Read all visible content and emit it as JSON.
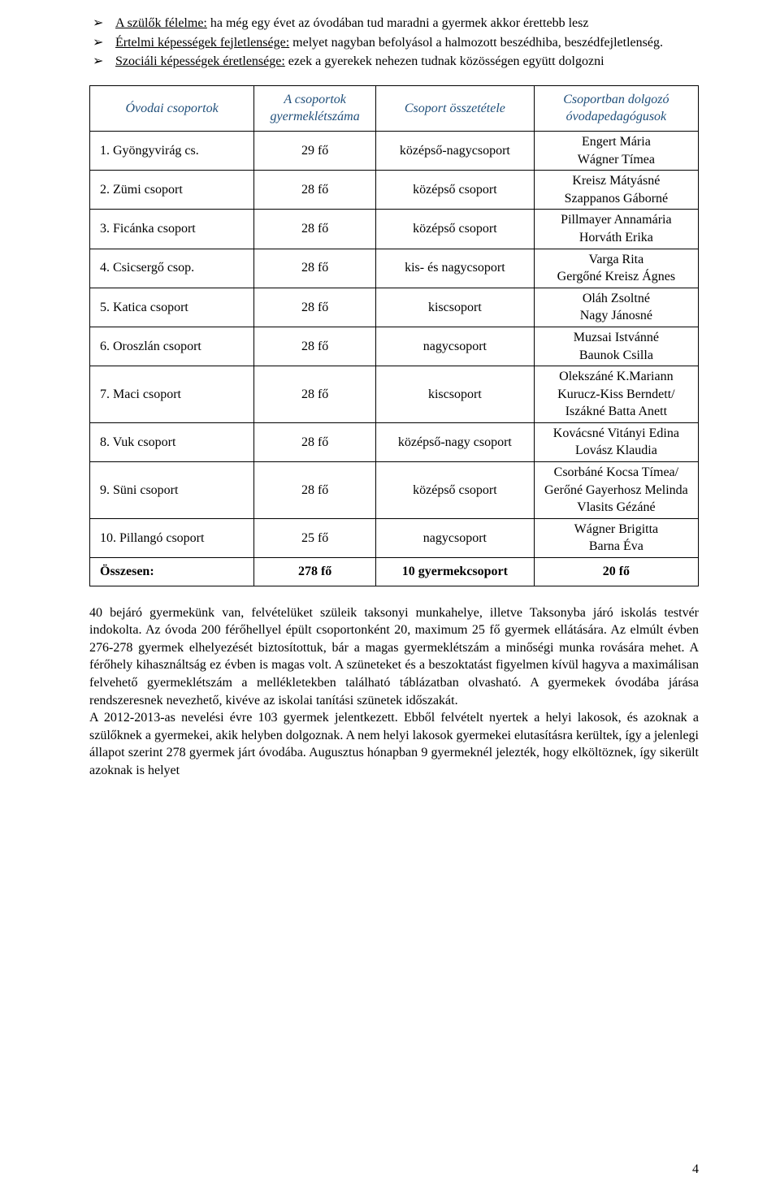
{
  "bullets": [
    {
      "prefix": "A szülők félelme:",
      "rest": " ha még egy évet az óvodában tud maradni a gyermek akkor érettebb lesz",
      "underline": true
    },
    {
      "prefix": "Értelmi képességek fejletlensége:",
      "rest": " melyet nagyban befolyásol a halmozott beszédhiba, beszédfejletlenség.",
      "underline": true
    },
    {
      "prefix": "Szociáli képességek éretlensége:",
      "rest": " ezek a gyerekek nehezen tudnak közösségen együtt dolgozni",
      "underline": true
    }
  ],
  "table": {
    "headers": {
      "c1": "Óvodai csoportok",
      "c2": "A csoportok gyermeklétszáma",
      "c3": "Csoport összetétele",
      "c4": "Csoportban dolgozó óvodapedagógusok"
    },
    "rows": [
      {
        "c1": "1.  Gyöngyvirág cs.",
        "c2": "29 fő",
        "c3": "középső-nagycsoport",
        "c4a": "Engert Mária",
        "c4b": "Wágner Tímea"
      },
      {
        "c1": "2.  Zümi csoport",
        "c2": "28 fő",
        "c3": "középső csoport",
        "c4a": "Kreisz Mátyásné",
        "c4b": "Szappanos Gáborné"
      },
      {
        "c1": "3.  Ficánka csoport",
        "c2": "28 fő",
        "c3": "középső csoport",
        "c4a": "Pillmayer Annamária",
        "c4b": "Horváth Erika"
      },
      {
        "c1": "4.  Csicsergő csop.",
        "c2": "28 fő",
        "c3": "kis- és nagycsoport",
        "c4a": "Varga Rita",
        "c4b": "Gergőné Kreisz Ágnes"
      },
      {
        "c1": "5.  Katica csoport",
        "c2": "28 fő",
        "c3": "kiscsoport",
        "c4a": "Oláh Zsoltné",
        "c4b": "Nagy Jánosné"
      },
      {
        "c1": "6.  Oroszlán csoport",
        "c2": "28 fő",
        "c3": "nagycsoport",
        "c4a": "Muzsai Istvánné",
        "c4b": "Baunok Csilla"
      },
      {
        "c1": "7.  Maci csoport",
        "c2": "28 fő",
        "c3": "kiscsoport",
        "c4a": "Olekszáné K.Mariann",
        "c4b": "Kurucz-Kiss Berndett/",
        "c4c": "Iszákné Batta Anett"
      },
      {
        "c1": "8.  Vuk csoport",
        "c2": "28 fő",
        "c3": "középső-nagy csoport",
        "c4a": "Kovácsné Vitányi Edina",
        "c4b": "Lovász Klaudia"
      },
      {
        "c1": "9.  Süni csoport",
        "c2": "28 fő",
        "c3": "középső csoport",
        "c4a": "Csorbáné Kocsa Tímea/",
        "c4b": "Gerőné Gayerhosz Melinda",
        "c4c": "Vlasits Gézáné"
      },
      {
        "c1": "10. Pillangó csoport",
        "c2": "25 fő",
        "c3": "nagycsoport",
        "c4a": "Wágner Brigitta",
        "c4b": "Barna Éva"
      }
    ],
    "summary": {
      "c1": "Összesen:",
      "c2": "278 fő",
      "c3": "10 gyermekcsoport",
      "c4": "20 fő"
    }
  },
  "paragraph": "40 bejáró gyermekünk van, felvételüket szüleik taksonyi munkahelye, illetve Taksonyba járó iskolás testvér indokolta. Az óvoda 200 férőhellyel épült csoportonként 20, maximum 25 fő gyermek ellátására. Az elmúlt évben 276-278 gyermek elhelyezését biztosítottuk, bár a magas gyermeklétszám a minőségi munka rovására mehet. A férőhely kihasználtság ez évben is magas volt. A szüneteket és a beszoktatást figyelmen kívül hagyva a maximálisan felvehető gyermeklétszám a mellékletekben található táblázatban olvasható. A gyermekek óvodába járása rendszeresnek nevezhető, kivéve az iskolai tanítási szünetek időszakát.",
  "paragraph2": "A 2012-2013-as nevelési évre 103 gyermek jelentkezett. Ebből felvételt nyertek a helyi lakosok, és azoknak a szülőknek a gyermekei, akik helyben dolgoznak. A nem helyi lakosok gyermekei elutasításra kerültek, így a jelenlegi állapot szerint 278 gyermek járt óvodába. Augusztus hónapban 9 gyermeknél jelezték, hogy elköltöznek, így sikerült azoknak is helyet",
  "pageNumber": "4"
}
